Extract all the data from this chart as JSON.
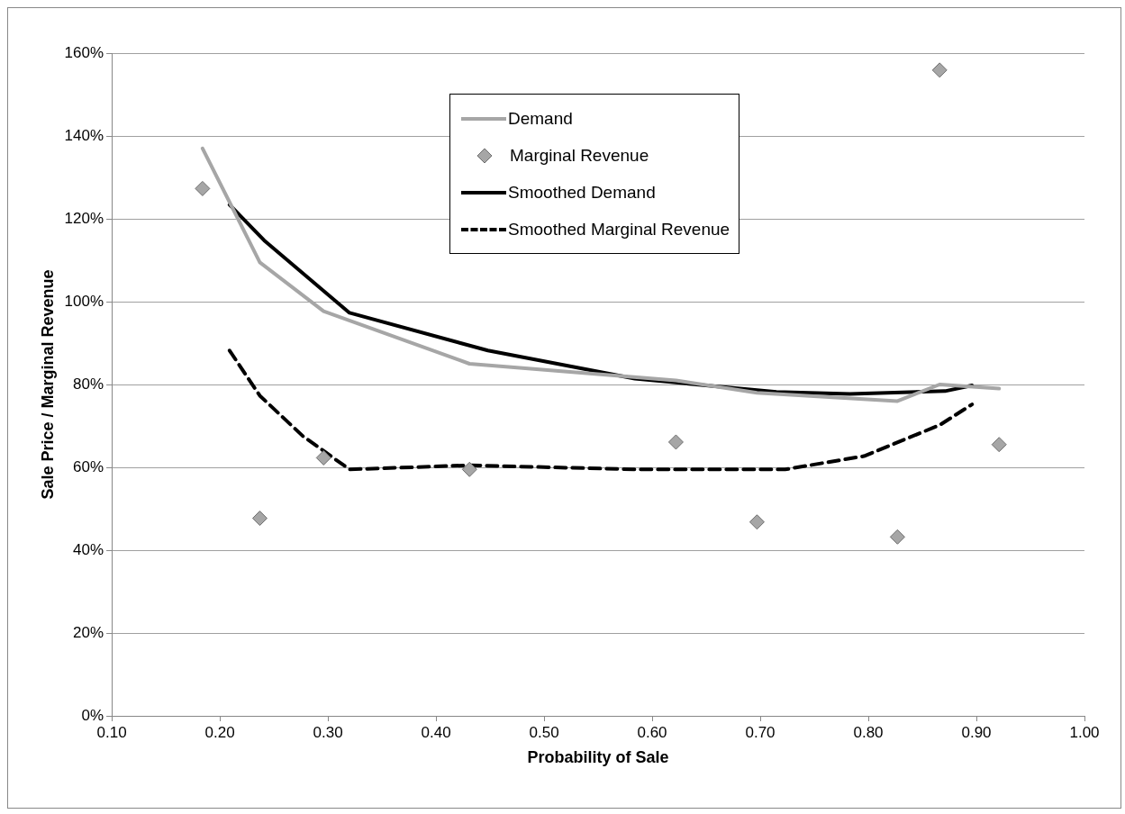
{
  "chart_data": {
    "type": "line",
    "xlabel": "Probability of Sale",
    "ylabel": "Sale Price / Marginal Revenue",
    "xlim": [
      0.1,
      1.0
    ],
    "xticks": [
      {
        "value": 0.1,
        "label": "0.10"
      },
      {
        "value": 0.2,
        "label": "0.20"
      },
      {
        "value": 0.3,
        "label": "0.30"
      },
      {
        "value": 0.4,
        "label": "0.40"
      },
      {
        "value": 0.5,
        "label": "0.50"
      },
      {
        "value": 0.6,
        "label": "0.60"
      },
      {
        "value": 0.7,
        "label": "0.70"
      },
      {
        "value": 0.8,
        "label": "0.80"
      },
      {
        "value": 0.9,
        "label": "0.90"
      },
      {
        "value": 1.0,
        "label": "1.00"
      }
    ],
    "ylim": [
      0,
      160
    ],
    "yticks": [
      {
        "value": 0,
        "label": "0%"
      },
      {
        "value": 20,
        "label": "20%"
      },
      {
        "value": 40,
        "label": "40%"
      },
      {
        "value": 60,
        "label": "60%"
      },
      {
        "value": 80,
        "label": "80%"
      },
      {
        "value": 100,
        "label": "100%"
      },
      {
        "value": 120,
        "label": "120%"
      },
      {
        "value": 140,
        "label": "140%"
      },
      {
        "value": 160,
        "label": "160%"
      }
    ],
    "grid": "y",
    "legend": "top",
    "series": [
      {
        "name": "Demand",
        "type": "line",
        "color": "#a6a6a6",
        "marker": "none",
        "line_style": "solid",
        "x": [
          0.184,
          0.237,
          0.296,
          0.431,
          0.622,
          0.697,
          0.827,
          0.866,
          0.921
        ],
        "values": [
          137,
          109.5,
          97.7,
          85,
          81,
          78,
          76,
          80,
          79
        ]
      },
      {
        "name": "Marginal Revenue",
        "type": "scatter",
        "color": "#a6a6a6",
        "marker": "diamond",
        "x": [
          0.184,
          0.237,
          0.296,
          0.431,
          0.622,
          0.697,
          0.827,
          0.866,
          0.921
        ],
        "values": [
          127.3,
          47.7,
          62.3,
          59.5,
          66.1,
          46.8,
          43.2,
          155.9,
          65.5
        ]
      },
      {
        "name": "Smoothed Demand",
        "type": "line",
        "color": "#000000",
        "marker": "none",
        "line_style": "solid",
        "x": [
          0.209,
          0.241,
          0.32,
          0.448,
          0.584,
          0.715,
          0.783,
          0.871,
          0.896
        ],
        "values": [
          123.4,
          114.8,
          97.3,
          88.2,
          81.4,
          78.2,
          77.7,
          78.4,
          79.8
        ]
      },
      {
        "name": "Smoothed Marginal Revenue",
        "type": "line",
        "color": "#000000",
        "marker": "none",
        "line_style": "dashed",
        "x": [
          0.209,
          0.237,
          0.277,
          0.32,
          0.431,
          0.584,
          0.723,
          0.796,
          0.866,
          0.896
        ],
        "values": [
          88.2,
          77.3,
          67.5,
          59.5,
          60.5,
          59.5,
          59.5,
          62.7,
          70.2,
          75.2
        ]
      }
    ]
  }
}
